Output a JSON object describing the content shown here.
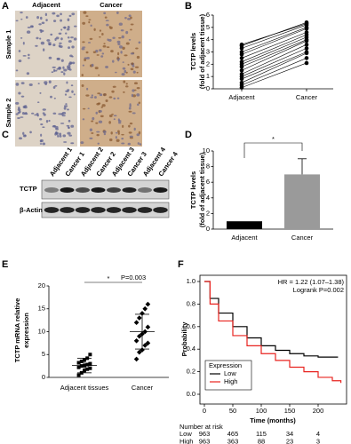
{
  "panel_labels": [
    "A",
    "B",
    "C",
    "D",
    "E",
    "F"
  ],
  "panel_a": {
    "columns": [
      "Adjacent",
      "Cancer"
    ],
    "rows": [
      "Sample 1",
      "Sample 2"
    ]
  },
  "panel_c": {
    "lanes": [
      "Adjacent 1",
      "Cancer 1",
      "Adjacent 2",
      "Cancer 2",
      "Adjacent 3",
      "Cancer 3",
      "Adjacent 4",
      "Cancer 4"
    ],
    "rows": [
      "TCTP",
      "β-Actin"
    ]
  },
  "chart_data": [
    {
      "type": "paired-dot",
      "y_label": [
        "TCTP levels",
        "(fold of adjacent tissue)"
      ],
      "categories": [
        "Adjacent",
        "Cancer"
      ],
      "values": [
        [
          0.1,
          2.1
        ],
        [
          0.3,
          2.5
        ],
        [
          0.5,
          2.9
        ],
        [
          0.8,
          3.0
        ],
        [
          1.0,
          3.3
        ],
        [
          1.2,
          3.6
        ],
        [
          1.5,
          3.9
        ],
        [
          1.8,
          4.0
        ],
        [
          2.0,
          4.2
        ],
        [
          2.2,
          4.4
        ],
        [
          2.5,
          4.6
        ],
        [
          2.8,
          4.9
        ],
        [
          3.0,
          5.0
        ],
        [
          3.3,
          5.2
        ],
        [
          3.5,
          5.4
        ],
        [
          3.6,
          5.3
        ]
      ],
      "ylim": [
        0,
        6
      ],
      "yticks": [
        0,
        1,
        2,
        3,
        4,
        5,
        6
      ]
    },
    {
      "type": "bar",
      "y_label": [
        "TCTP levels",
        "(fold of adjacent tissue)"
      ],
      "categories": [
        "Adjacent",
        "Cancer"
      ],
      "values": [
        1,
        7
      ],
      "errors": [
        0,
        2
      ],
      "colors": [
        "#000000",
        "#9a9a9a"
      ],
      "annotation": "*",
      "ylim": [
        0,
        10
      ],
      "yticks": [
        0,
        2,
        4,
        6,
        8,
        10
      ]
    },
    {
      "type": "dot-mean-sd",
      "y_label": [
        "TCTP mRNA relative",
        "expression"
      ],
      "categories": [
        "Adjacent tissues",
        "Cancer"
      ],
      "values": [
        [
          0.5,
          1.0,
          1.5,
          1.8,
          2.0,
          2.2,
          2.5,
          2.6,
          2.8,
          3.0,
          3.2,
          3.5,
          3.8,
          4.2,
          5.0
        ],
        [
          4.0,
          5.5,
          6.0,
          7.0,
          7.5,
          8.0,
          9.0,
          9.5,
          10.0,
          11.0,
          12.0,
          13.0,
          14.0,
          15.0,
          16.0
        ]
      ],
      "means": [
        2.6,
        10
      ],
      "sd": [
        1.6,
        3.8
      ],
      "annotations": [
        "*",
        "P=0.003"
      ],
      "ylim": [
        0,
        20
      ],
      "yticks": [
        0,
        5,
        10,
        15,
        20
      ]
    },
    {
      "type": "survival",
      "y_label": "Probability",
      "x_label": "Time (months)",
      "annotations": [
        "HR = 1.22 (1.07–1.38)",
        "Logrank P=0.002"
      ],
      "legend_title": "Expression",
      "series": [
        {
          "name": "Low",
          "color": "#000000",
          "x": [
            0,
            10,
            25,
            50,
            75,
            100,
            125,
            150,
            175,
            200,
            235
          ],
          "values": [
            1,
            0.85,
            0.72,
            0.6,
            0.5,
            0.43,
            0.39,
            0.36,
            0.34,
            0.33,
            0.33
          ]
        },
        {
          "name": "High",
          "color": "#e8231f",
          "x": [
            0,
            10,
            25,
            50,
            75,
            100,
            125,
            150,
            175,
            200,
            225,
            240
          ],
          "values": [
            1,
            0.8,
            0.65,
            0.52,
            0.43,
            0.36,
            0.3,
            0.24,
            0.2,
            0.15,
            0.12,
            0.1
          ]
        }
      ],
      "xlim": [
        0,
        250
      ],
      "xticks": [
        0,
        50,
        100,
        150,
        200
      ],
      "ylim": [
        0,
        1
      ],
      "yticks": [
        {
          "value": 0,
          "label": "0.0"
        },
        {
          "value": 0.2,
          "label": "0.2"
        },
        {
          "value": 0.4,
          "label": "0.4"
        },
        {
          "value": 0.6,
          "label": "0.6"
        },
        {
          "value": 0.8,
          "label": "0.8"
        },
        {
          "value": 1,
          "label": "1.0"
        }
      ],
      "risk_table": {
        "title": "Number at risk",
        "rows": [
          {
            "name": "Low",
            "values": [
              963,
              465,
              115,
              34,
              4
            ]
          },
          {
            "name": "High",
            "values": [
              963,
              363,
              88,
              23,
              3
            ]
          }
        ]
      }
    }
  ]
}
